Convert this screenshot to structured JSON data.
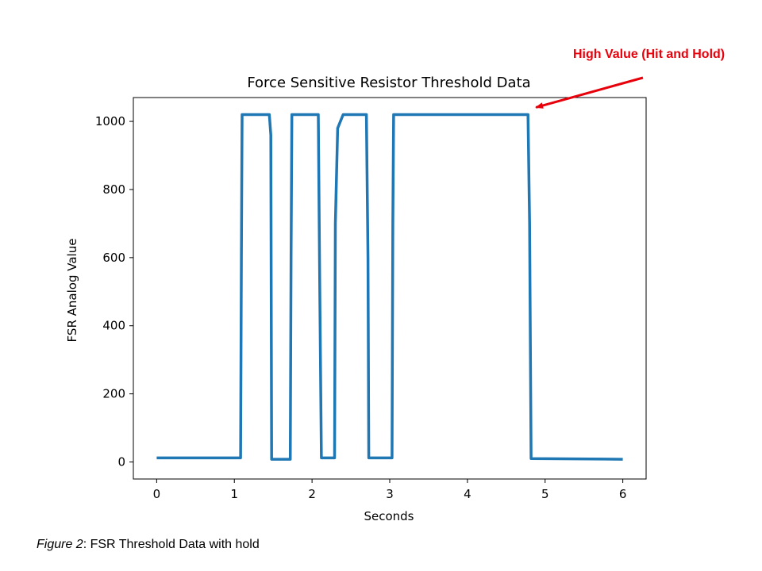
{
  "chart_data": {
    "type": "line",
    "title": "Force Sensitive Resistor Threshold Data",
    "xlabel": "Seconds",
    "ylabel": "FSR Analog Value",
    "xlim": [
      -0.3,
      6.3
    ],
    "ylim": [
      -50,
      1070
    ],
    "xticks": [
      "0",
      "1",
      "2",
      "3",
      "4",
      "5",
      "6"
    ],
    "yticks": [
      "0",
      "200",
      "400",
      "600",
      "800",
      "1000"
    ],
    "grid": false,
    "legend": "none",
    "series": [
      {
        "color": "#1f77b4",
        "x": [
          0.0,
          1.08,
          1.09,
          1.1,
          1.45,
          1.47,
          1.48,
          1.72,
          1.73,
          1.74,
          2.08,
          2.1,
          2.12,
          2.29,
          2.3,
          2.33,
          2.4,
          2.7,
          2.72,
          2.73,
          3.03,
          3.04,
          3.05,
          4.78,
          4.8,
          4.82,
          6.0
        ],
        "y": [
          12,
          12,
          600,
          1020,
          1020,
          960,
          8,
          8,
          600,
          1020,
          1020,
          500,
          12,
          12,
          700,
          980,
          1020,
          1020,
          600,
          12,
          12,
          700,
          1020,
          1020,
          700,
          10,
          8
        ]
      }
    ],
    "annotations": [
      {
        "text": "High Value (Hit and Hold)",
        "color": "#e8000b",
        "arrow_to": {
          "x": 4.82,
          "y": 1020
        }
      }
    ]
  },
  "caption": {
    "figure_label": "Figure 2",
    "text": ": FSR Threshold Data with hold"
  }
}
